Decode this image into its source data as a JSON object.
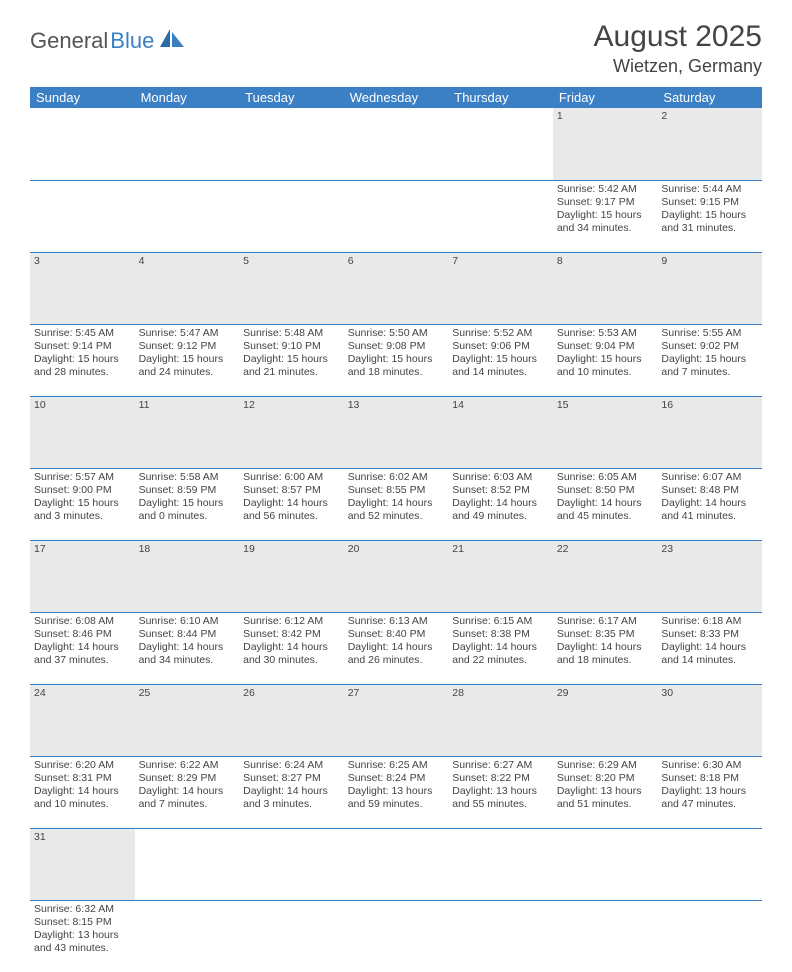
{
  "logo": {
    "part1": "General",
    "part2": "Blue"
  },
  "title": {
    "month_year": "August 2025",
    "location": "Wietzen, Germany"
  },
  "colors": {
    "header_bg": "#3b7fc4",
    "daynum_bg": "#e9e9e9",
    "text": "#444444"
  },
  "weekdays": [
    "Sunday",
    "Monday",
    "Tuesday",
    "Wednesday",
    "Thursday",
    "Friday",
    "Saturday"
  ],
  "weeks": [
    [
      null,
      null,
      null,
      null,
      null,
      {
        "n": "1",
        "sr": "Sunrise: 5:42 AM",
        "ss": "Sunset: 9:17 PM",
        "dl1": "Daylight: 15 hours",
        "dl2": "and 34 minutes."
      },
      {
        "n": "2",
        "sr": "Sunrise: 5:44 AM",
        "ss": "Sunset: 9:15 PM",
        "dl1": "Daylight: 15 hours",
        "dl2": "and 31 minutes."
      }
    ],
    [
      {
        "n": "3",
        "sr": "Sunrise: 5:45 AM",
        "ss": "Sunset: 9:14 PM",
        "dl1": "Daylight: 15 hours",
        "dl2": "and 28 minutes."
      },
      {
        "n": "4",
        "sr": "Sunrise: 5:47 AM",
        "ss": "Sunset: 9:12 PM",
        "dl1": "Daylight: 15 hours",
        "dl2": "and 24 minutes."
      },
      {
        "n": "5",
        "sr": "Sunrise: 5:48 AM",
        "ss": "Sunset: 9:10 PM",
        "dl1": "Daylight: 15 hours",
        "dl2": "and 21 minutes."
      },
      {
        "n": "6",
        "sr": "Sunrise: 5:50 AM",
        "ss": "Sunset: 9:08 PM",
        "dl1": "Daylight: 15 hours",
        "dl2": "and 18 minutes."
      },
      {
        "n": "7",
        "sr": "Sunrise: 5:52 AM",
        "ss": "Sunset: 9:06 PM",
        "dl1": "Daylight: 15 hours",
        "dl2": "and 14 minutes."
      },
      {
        "n": "8",
        "sr": "Sunrise: 5:53 AM",
        "ss": "Sunset: 9:04 PM",
        "dl1": "Daylight: 15 hours",
        "dl2": "and 10 minutes."
      },
      {
        "n": "9",
        "sr": "Sunrise: 5:55 AM",
        "ss": "Sunset: 9:02 PM",
        "dl1": "Daylight: 15 hours",
        "dl2": "and 7 minutes."
      }
    ],
    [
      {
        "n": "10",
        "sr": "Sunrise: 5:57 AM",
        "ss": "Sunset: 9:00 PM",
        "dl1": "Daylight: 15 hours",
        "dl2": "and 3 minutes."
      },
      {
        "n": "11",
        "sr": "Sunrise: 5:58 AM",
        "ss": "Sunset: 8:59 PM",
        "dl1": "Daylight: 15 hours",
        "dl2": "and 0 minutes."
      },
      {
        "n": "12",
        "sr": "Sunrise: 6:00 AM",
        "ss": "Sunset: 8:57 PM",
        "dl1": "Daylight: 14 hours",
        "dl2": "and 56 minutes."
      },
      {
        "n": "13",
        "sr": "Sunrise: 6:02 AM",
        "ss": "Sunset: 8:55 PM",
        "dl1": "Daylight: 14 hours",
        "dl2": "and 52 minutes."
      },
      {
        "n": "14",
        "sr": "Sunrise: 6:03 AM",
        "ss": "Sunset: 8:52 PM",
        "dl1": "Daylight: 14 hours",
        "dl2": "and 49 minutes."
      },
      {
        "n": "15",
        "sr": "Sunrise: 6:05 AM",
        "ss": "Sunset: 8:50 PM",
        "dl1": "Daylight: 14 hours",
        "dl2": "and 45 minutes."
      },
      {
        "n": "16",
        "sr": "Sunrise: 6:07 AM",
        "ss": "Sunset: 8:48 PM",
        "dl1": "Daylight: 14 hours",
        "dl2": "and 41 minutes."
      }
    ],
    [
      {
        "n": "17",
        "sr": "Sunrise: 6:08 AM",
        "ss": "Sunset: 8:46 PM",
        "dl1": "Daylight: 14 hours",
        "dl2": "and 37 minutes."
      },
      {
        "n": "18",
        "sr": "Sunrise: 6:10 AM",
        "ss": "Sunset: 8:44 PM",
        "dl1": "Daylight: 14 hours",
        "dl2": "and 34 minutes."
      },
      {
        "n": "19",
        "sr": "Sunrise: 6:12 AM",
        "ss": "Sunset: 8:42 PM",
        "dl1": "Daylight: 14 hours",
        "dl2": "and 30 minutes."
      },
      {
        "n": "20",
        "sr": "Sunrise: 6:13 AM",
        "ss": "Sunset: 8:40 PM",
        "dl1": "Daylight: 14 hours",
        "dl2": "and 26 minutes."
      },
      {
        "n": "21",
        "sr": "Sunrise: 6:15 AM",
        "ss": "Sunset: 8:38 PM",
        "dl1": "Daylight: 14 hours",
        "dl2": "and 22 minutes."
      },
      {
        "n": "22",
        "sr": "Sunrise: 6:17 AM",
        "ss": "Sunset: 8:35 PM",
        "dl1": "Daylight: 14 hours",
        "dl2": "and 18 minutes."
      },
      {
        "n": "23",
        "sr": "Sunrise: 6:18 AM",
        "ss": "Sunset: 8:33 PM",
        "dl1": "Daylight: 14 hours",
        "dl2": "and 14 minutes."
      }
    ],
    [
      {
        "n": "24",
        "sr": "Sunrise: 6:20 AM",
        "ss": "Sunset: 8:31 PM",
        "dl1": "Daylight: 14 hours",
        "dl2": "and 10 minutes."
      },
      {
        "n": "25",
        "sr": "Sunrise: 6:22 AM",
        "ss": "Sunset: 8:29 PM",
        "dl1": "Daylight: 14 hours",
        "dl2": "and 7 minutes."
      },
      {
        "n": "26",
        "sr": "Sunrise: 6:24 AM",
        "ss": "Sunset: 8:27 PM",
        "dl1": "Daylight: 14 hours",
        "dl2": "and 3 minutes."
      },
      {
        "n": "27",
        "sr": "Sunrise: 6:25 AM",
        "ss": "Sunset: 8:24 PM",
        "dl1": "Daylight: 13 hours",
        "dl2": "and 59 minutes."
      },
      {
        "n": "28",
        "sr": "Sunrise: 6:27 AM",
        "ss": "Sunset: 8:22 PM",
        "dl1": "Daylight: 13 hours",
        "dl2": "and 55 minutes."
      },
      {
        "n": "29",
        "sr": "Sunrise: 6:29 AM",
        "ss": "Sunset: 8:20 PM",
        "dl1": "Daylight: 13 hours",
        "dl2": "and 51 minutes."
      },
      {
        "n": "30",
        "sr": "Sunrise: 6:30 AM",
        "ss": "Sunset: 8:18 PM",
        "dl1": "Daylight: 13 hours",
        "dl2": "and 47 minutes."
      }
    ],
    [
      {
        "n": "31",
        "sr": "Sunrise: 6:32 AM",
        "ss": "Sunset: 8:15 PM",
        "dl1": "Daylight: 13 hours",
        "dl2": "and 43 minutes."
      },
      null,
      null,
      null,
      null,
      null,
      null
    ]
  ]
}
